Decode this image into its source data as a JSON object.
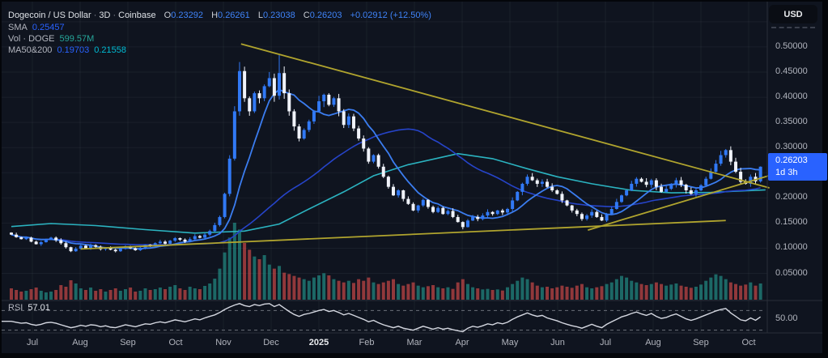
{
  "window": {
    "currency_button": "USD"
  },
  "legend": {
    "title": "Dogecoin / US Dollar",
    "interval": "3D",
    "exchange": "Coinbase",
    "separator": "·",
    "ohlc": [
      {
        "label": "O",
        "value": "0.23292"
      },
      {
        "label": "H",
        "value": "0.26261"
      },
      {
        "label": "L",
        "value": "0.23038"
      },
      {
        "label": "C",
        "value": "0.26203"
      }
    ],
    "change": "+0.02912 (+12.50%)",
    "sma": {
      "label": "SMA",
      "value": "0.25457"
    },
    "volume": {
      "label": "Vol · DOGE",
      "value": "599.57M"
    },
    "ma": {
      "label": "MA50&200",
      "value1": "0.19703",
      "value2": "0.21558"
    }
  },
  "rsi_legend": {
    "label": "RSI",
    "value": "57.01"
  },
  "price_axis": {
    "ticks": [
      "0.50000",
      "0.45000",
      "0.40000",
      "0.35000",
      "0.30000",
      "0.20000",
      "0.15000",
      "0.10000",
      "0.05000"
    ]
  },
  "price_tag": {
    "price": "0.26203",
    "countdown": "1d 3h"
  },
  "rsi_axis": {
    "tick": "50.00",
    "upper_band": 70,
    "lower_band": 30
  },
  "time_axis": {
    "labels": [
      "Jul",
      "Aug",
      "Sep",
      "Oct",
      "Nov",
      "Dec",
      "2025",
      "Feb",
      "Mar",
      "Apr",
      "May",
      "Jun",
      "Jul",
      "Aug",
      "Sep",
      "Oct"
    ],
    "bold_index": 6
  },
  "chart_data": {
    "type": "candlestick",
    "title": "Dogecoin / US Dollar · 3D · Coinbase",
    "ylim": [
      0.02,
      0.53
    ],
    "current": {
      "open": 0.23292,
      "high": 0.26261,
      "low": 0.23038,
      "close": 0.26203,
      "change": 0.02912,
      "change_pct": 12.5,
      "rsi": 57.01,
      "sma": 0.25457,
      "ma50": 0.19703,
      "ma200": 0.21558,
      "volume_doge": "599.57M"
    },
    "first_open": 0.131,
    "closes": [
      0.127,
      0.122,
      0.118,
      0.121,
      0.113,
      0.108,
      0.112,
      0.118,
      0.121,
      0.116,
      0.11,
      0.102,
      0.094,
      0.099,
      0.105,
      0.1,
      0.106,
      0.103,
      0.098,
      0.101,
      0.097,
      0.094,
      0.099,
      0.104,
      0.1,
      0.096,
      0.101,
      0.107,
      0.105,
      0.11,
      0.113,
      0.109,
      0.115,
      0.12,
      0.117,
      0.113,
      0.118,
      0.124,
      0.121,
      0.127,
      0.134,
      0.146,
      0.162,
      0.208,
      0.278,
      0.372,
      0.452,
      0.398,
      0.372,
      0.408,
      0.398,
      0.422,
      0.438,
      0.403,
      0.448,
      0.408,
      0.372,
      0.342,
      0.318,
      0.335,
      0.352,
      0.372,
      0.392,
      0.405,
      0.385,
      0.398,
      0.372,
      0.345,
      0.362,
      0.338,
      0.318,
      0.298,
      0.272,
      0.285,
      0.262,
      0.242,
      0.222,
      0.205,
      0.215,
      0.198,
      0.188,
      0.175,
      0.185,
      0.196,
      0.182,
      0.172,
      0.18,
      0.168,
      0.174,
      0.162,
      0.152,
      0.142,
      0.155,
      0.162,
      0.158,
      0.165,
      0.172,
      0.168,
      0.175,
      0.171,
      0.178,
      0.195,
      0.212,
      0.228,
      0.242,
      0.235,
      0.228,
      0.232,
      0.222,
      0.215,
      0.208,
      0.195,
      0.185,
      0.175,
      0.168,
      0.158,
      0.165,
      0.172,
      0.162,
      0.155,
      0.168,
      0.178,
      0.192,
      0.205,
      0.215,
      0.228,
      0.238,
      0.232,
      0.226,
      0.235,
      0.222,
      0.212,
      0.218,
      0.228,
      0.235,
      0.226,
      0.215,
      0.208,
      0.215,
      0.225,
      0.238,
      0.252,
      0.268,
      0.285,
      0.295,
      0.272,
      0.252,
      0.232,
      0.228,
      0.242,
      0.2329,
      0.26203
    ],
    "volumes_m": [
      420,
      360,
      300,
      330,
      390,
      450,
      330,
      270,
      300,
      360,
      540,
      480,
      720,
      600,
      420,
      360,
      450,
      330,
      390,
      300,
      360,
      420,
      330,
      390,
      450,
      300,
      330,
      420,
      360,
      390,
      450,
      390,
      480,
      540,
      420,
      360,
      480,
      420,
      390,
      510,
      600,
      780,
      1150,
      1750,
      2300,
      2850,
      2600,
      2100,
      1850,
      1600,
      1500,
      1650,
      1300,
      1150,
      1250,
      1000,
      950,
      880,
      820,
      760,
      700,
      820,
      900,
      980,
      900,
      760,
      700,
      640,
      700,
      620,
      760,
      700,
      820,
      640,
      580,
      640,
      700,
      760,
      580,
      520,
      580,
      640,
      520,
      460,
      500,
      540,
      460,
      420,
      460,
      400,
      640,
      760,
      580,
      460,
      420,
      380,
      400,
      360,
      380,
      340,
      460,
      580,
      700,
      820,
      760,
      640,
      520,
      460,
      480,
      420,
      460,
      520,
      480,
      440,
      520,
      580,
      460,
      420,
      460,
      500,
      580,
      640,
      760,
      880,
      820,
      700,
      640,
      580,
      540,
      580,
      640,
      580,
      520,
      560,
      600,
      520,
      480,
      440,
      480,
      560,
      700,
      820,
      940,
      880,
      760,
      640,
      580,
      520,
      560,
      640,
      520,
      600
    ],
    "rsi": [
      48,
      46,
      44,
      45,
      42,
      40,
      42,
      45,
      46,
      44,
      41,
      38,
      35,
      37,
      40,
      38,
      41,
      40,
      37,
      39,
      36,
      35,
      38,
      41,
      39,
      37,
      40,
      43,
      42,
      45,
      47,
      45,
      48,
      51,
      49,
      47,
      50,
      53,
      51,
      55,
      58,
      61,
      66,
      72,
      77,
      81,
      84,
      80,
      78,
      82,
      80,
      83,
      84,
      78,
      82,
      75,
      68,
      62,
      58,
      62,
      64,
      67,
      70,
      72,
      68,
      70,
      66,
      61,
      64,
      60,
      56,
      52,
      47,
      50,
      45,
      41,
      38,
      35,
      38,
      34,
      32,
      30,
      34,
      38,
      35,
      32,
      35,
      32,
      34,
      31,
      29,
      27,
      34,
      38,
      36,
      39,
      43,
      41,
      45,
      43,
      46,
      52,
      57,
      61,
      65,
      61,
      58,
      60,
      55,
      52,
      49,
      45,
      42,
      39,
      37,
      34,
      38,
      42,
      38,
      35,
      42,
      47,
      52,
      57,
      60,
      64,
      67,
      63,
      60,
      64,
      58,
      54,
      56,
      60,
      63,
      58,
      53,
      50,
      53,
      57,
      61,
      65,
      69,
      72,
      74,
      65,
      58,
      51,
      49,
      55,
      50,
      57
    ],
    "wick_overrides": {
      "46": {
        "high": 0.47
      },
      "54": {
        "high": 0.484
      },
      "151": {
        "high": 0.26261,
        "low": 0.23038
      }
    },
    "ma200_path": [
      [
        0,
        0.143
      ],
      [
        8,
        0.149
      ],
      [
        17,
        0.145
      ],
      [
        27,
        0.137
      ],
      [
        37,
        0.13
      ],
      [
        47,
        0.134
      ],
      [
        54,
        0.148
      ],
      [
        60,
        0.178
      ],
      [
        67,
        0.212
      ],
      [
        73,
        0.244
      ],
      [
        80,
        0.266
      ],
      [
        86,
        0.279
      ],
      [
        90,
        0.288
      ],
      [
        97,
        0.278
      ],
      [
        104,
        0.258
      ],
      [
        110,
        0.242
      ],
      [
        117,
        0.228
      ],
      [
        125,
        0.215
      ],
      [
        133,
        0.21
      ],
      [
        141,
        0.211
      ],
      [
        152,
        0.216
      ]
    ],
    "sma_window": 9,
    "ma50_window": 38,
    "trendlines": [
      {
        "name": "descending-resistance",
        "points": [
          [
            46.3,
            0.506
          ],
          [
            152.8,
            0.2198
          ]
        ]
      },
      {
        "name": "ascending-support-steep",
        "points": [
          [
            116.2,
            0.136
          ],
          [
            154.0,
            0.248
          ]
        ]
      },
      {
        "name": "ascending-support-long",
        "points": [
          [
            14.0,
            0.0985
          ],
          [
            144.0,
            0.155
          ]
        ]
      }
    ],
    "colors": {
      "up": "#3179f5",
      "down": "#f0f3fa",
      "vol_up": "#26a69a",
      "vol_down": "#ef5350",
      "sma": "#3b7df0",
      "ma50": "#2644c9",
      "ma200": "#2bb3c0",
      "trendline": "#b0a42e",
      "rsi_line": "#d4d7e0",
      "accent": "#2962ff",
      "grid": "rgba(170,180,200,0.07)",
      "separator": "#2a2e39",
      "band_dash": "#6b6f7a"
    }
  }
}
